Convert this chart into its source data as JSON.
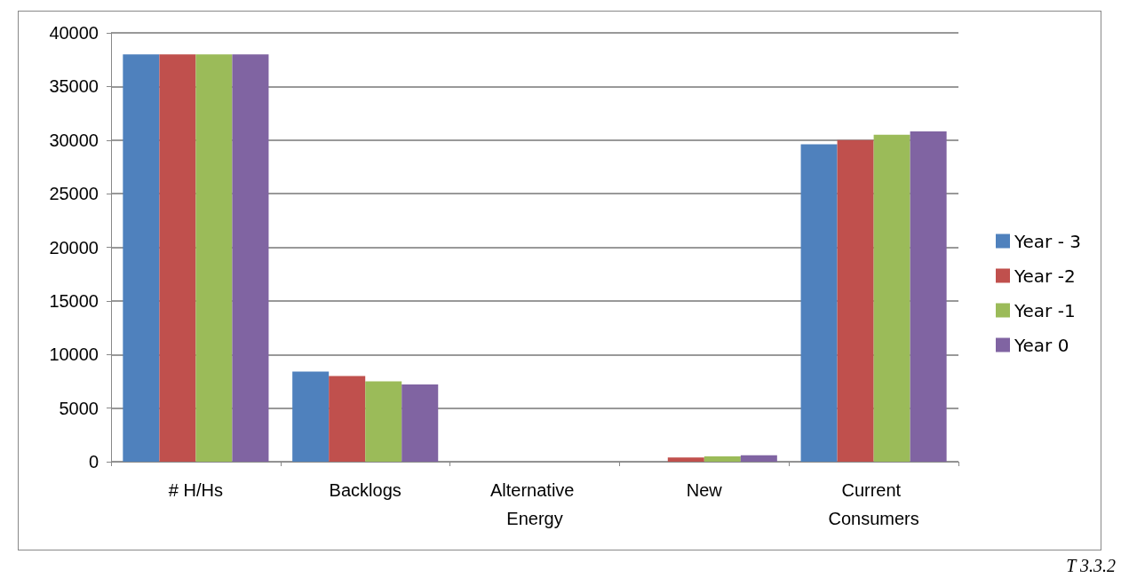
{
  "chart_data": {
    "type": "bar",
    "categories": [
      "# H/Hs",
      "Backlogs",
      "Alternative Energy",
      "New",
      "Current Consumers"
    ],
    "series": [
      {
        "name": "Year - 3",
        "color": "#4f81bd",
        "values": [
          38000,
          8400,
          0,
          0,
          29600
        ]
      },
      {
        "name": "Year -2",
        "color": "#c0504d",
        "values": [
          38000,
          8000,
          0,
          400,
          30000
        ]
      },
      {
        "name": "Year -1",
        "color": "#9bbb59",
        "values": [
          38000,
          7500,
          0,
          500,
          30500
        ]
      },
      {
        "name": "Year 0",
        "color": "#8064a2",
        "values": [
          38000,
          7200,
          0,
          600,
          30800
        ]
      }
    ],
    "ylim": [
      0,
      40000
    ],
    "yticks": [
      0,
      5000,
      10000,
      15000,
      20000,
      25000,
      30000,
      35000,
      40000
    ],
    "grid": "y",
    "legend": "right",
    "annotations": [
      "T 3.3.2"
    ]
  }
}
